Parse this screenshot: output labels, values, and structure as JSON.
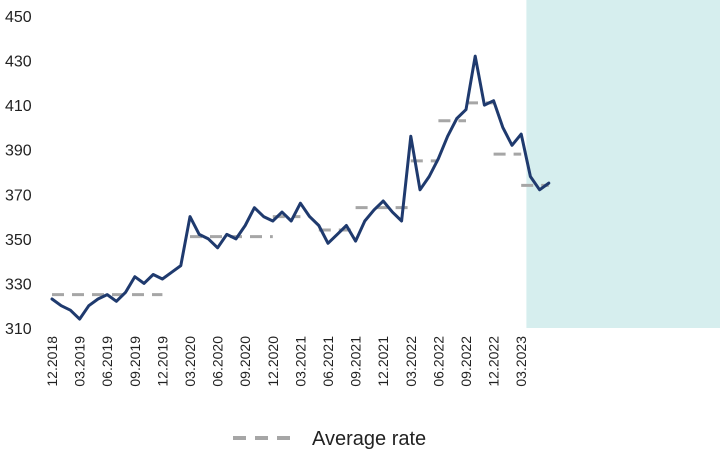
{
  "chart_data": {
    "type": "line",
    "title": "",
    "xlabel": "",
    "ylabel": "",
    "ylim": [
      310,
      450
    ],
    "y_ticks": [
      "310",
      "330",
      "350",
      "370",
      "390",
      "410",
      "430",
      "450"
    ],
    "x_ticks": [
      "12.2018",
      "03.2019",
      "06.2019",
      "09.2019",
      "12.2019",
      "03.2020",
      "06.2020",
      "09.2020",
      "12.2020",
      "03.2021",
      "06.2021",
      "09.2021",
      "12.2021",
      "03.2022",
      "06.2022",
      "09.2022",
      "12.2022",
      "03.2023"
    ],
    "grid": false,
    "legend": {
      "position": "bottom",
      "entries": [
        "Average rate"
      ]
    },
    "colors": {
      "rate": "#1f3a6e",
      "average": "#a6a6a6",
      "highlight": "#d6eeee"
    },
    "highlight_region": {
      "from": "04.2023",
      "to": "06.2023"
    },
    "series": [
      {
        "style": "solid",
        "points": [
          [
            "12.2018",
            323
          ],
          [
            "01.2019",
            320
          ],
          [
            "02.2019",
            318
          ],
          [
            "03.2019",
            314
          ],
          [
            "04.2019",
            320
          ],
          [
            "05.2019",
            323
          ],
          [
            "06.2019",
            325
          ],
          [
            "07.2019",
            322
          ],
          [
            "08.2019",
            326
          ],
          [
            "09.2019",
            333
          ],
          [
            "10.2019",
            330
          ],
          [
            "11.2019",
            334
          ],
          [
            "12.2019",
            332
          ],
          [
            "01.2020",
            335
          ],
          [
            "02.2020",
            338
          ],
          [
            "03.2020",
            360
          ],
          [
            "04.2020",
            352
          ],
          [
            "05.2020",
            350
          ],
          [
            "06.2020",
            346
          ],
          [
            "07.2020",
            352
          ],
          [
            "08.2020",
            350
          ],
          [
            "09.2020",
            356
          ],
          [
            "10.2020",
            364
          ],
          [
            "11.2020",
            360
          ],
          [
            "12.2020",
            358
          ],
          [
            "01.2021",
            362
          ],
          [
            "02.2021",
            358
          ],
          [
            "03.2021",
            366
          ],
          [
            "04.2021",
            360
          ],
          [
            "05.2021",
            356
          ],
          [
            "06.2021",
            348
          ],
          [
            "07.2021",
            352
          ],
          [
            "08.2021",
            356
          ],
          [
            "09.2021",
            349
          ],
          [
            "10.2021",
            358
          ],
          [
            "11.2021",
            363
          ],
          [
            "12.2021",
            367
          ],
          [
            "01.2022",
            362
          ],
          [
            "02.2022",
            358
          ],
          [
            "03.2022",
            396
          ],
          [
            "04.2022",
            372
          ],
          [
            "05.2022",
            378
          ],
          [
            "06.2022",
            386
          ],
          [
            "07.2022",
            396
          ],
          [
            "08.2022",
            404
          ],
          [
            "09.2022",
            408
          ],
          [
            "10.2022",
            432
          ],
          [
            "11.2022",
            410
          ],
          [
            "12.2022",
            412
          ],
          [
            "01.2023",
            400
          ],
          [
            "02.2023",
            392
          ],
          [
            "03.2023",
            397
          ],
          [
            "04.2023",
            378
          ],
          [
            "05.2023",
            372
          ],
          [
            "06.2023",
            375
          ]
        ]
      },
      {
        "name": "Average rate",
        "style": "dashed",
        "segments": [
          {
            "from": "12.2018",
            "to": "12.2019",
            "value": 325
          },
          {
            "from": "03.2020",
            "to": "12.2020",
            "value": 351
          },
          {
            "from": "12.2020",
            "to": "03.2021",
            "value": 360
          },
          {
            "from": "05.2021",
            "to": "09.2021",
            "value": 354
          },
          {
            "from": "09.2021",
            "to": "03.2022",
            "value": 364
          },
          {
            "from": "03.2022",
            "to": "06.2022",
            "value": 385
          },
          {
            "from": "06.2022",
            "to": "09.2022",
            "value": 403
          },
          {
            "from": "09.2022",
            "to": "12.2022",
            "value": 411
          },
          {
            "from": "12.2022",
            "to": "03.2023",
            "value": 388
          },
          {
            "from": "03.2023",
            "to": "06.2023",
            "value": 374
          }
        ]
      }
    ]
  }
}
